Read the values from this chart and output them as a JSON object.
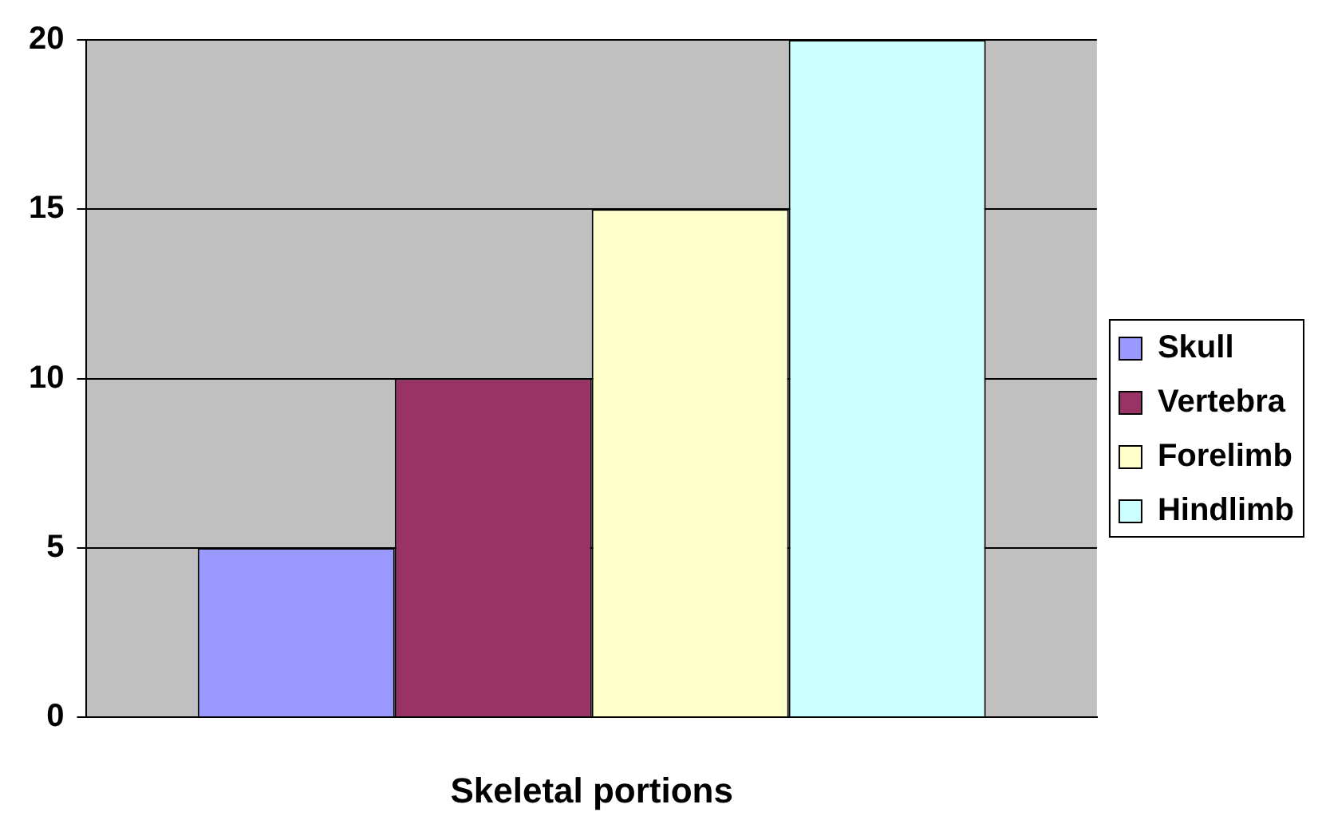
{
  "chart_data": {
    "type": "bar",
    "xlabel": "Skeletal portions",
    "categories": [
      null
    ],
    "series": [
      {
        "name": "Skull",
        "color": "#9999ff",
        "values": [
          5
        ]
      },
      {
        "name": "Vertebra",
        "color": "#993366",
        "values": [
          10
        ]
      },
      {
        "name": "Forelimb",
        "color": "#ffffcc",
        "values": [
          15
        ]
      },
      {
        "name": "Hindlimb",
        "color": "#ccffff",
        "values": [
          20
        ]
      }
    ],
    "ylim": [
      0,
      20
    ],
    "yticks": [
      0,
      5,
      10,
      15,
      20
    ],
    "grid": "y",
    "legend": "right"
  }
}
